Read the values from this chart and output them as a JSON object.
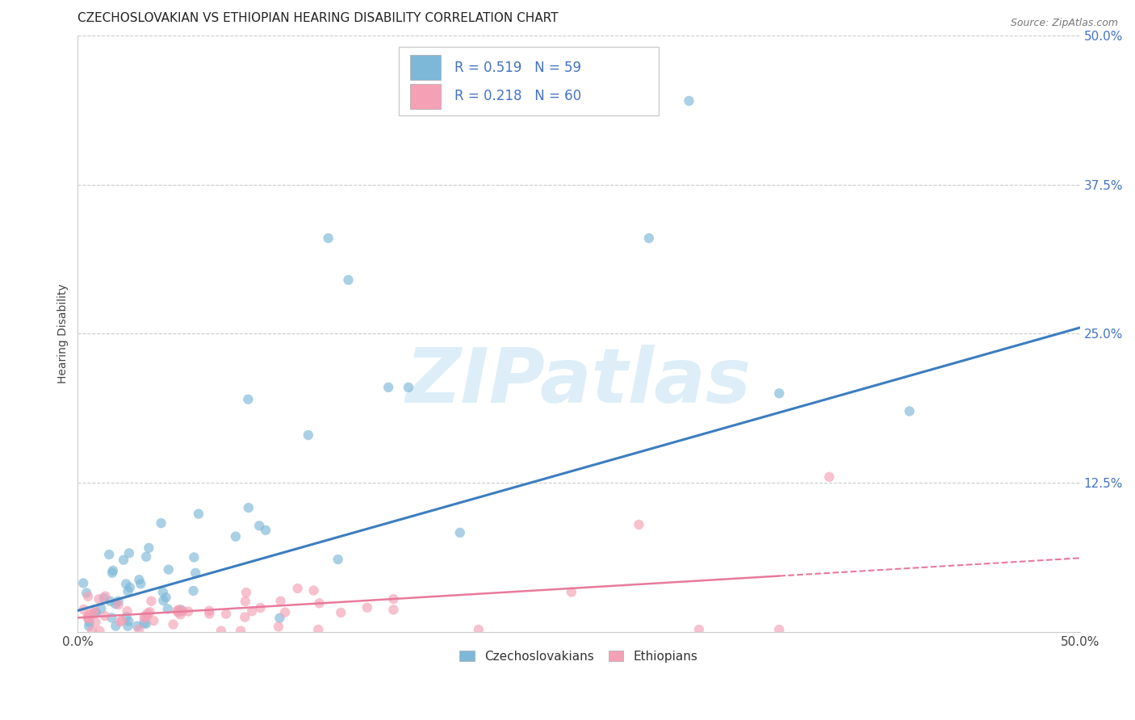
{
  "title": "CZECHOSLOVAKIAN VS ETHIOPIAN HEARING DISABILITY CORRELATION CHART",
  "source_text": "Source: ZipAtlas.com",
  "ylabel": "Hearing Disability",
  "xlim": [
    0.0,
    0.5
  ],
  "ylim": [
    0.0,
    0.5
  ],
  "xtick_positions": [
    0.0,
    0.5
  ],
  "xtick_labels": [
    "0.0%",
    "50.0%"
  ],
  "ytick_values": [
    0.125,
    0.25,
    0.375,
    0.5
  ],
  "ytick_labels": [
    "12.5%",
    "25.0%",
    "37.5%",
    "50.0%"
  ],
  "legend_labels": [
    "Czechoslovakians",
    "Ethiopians"
  ],
  "legend_R": [
    0.519,
    0.218
  ],
  "legend_N": [
    59,
    60
  ],
  "blue_scatter_color": "#7db8d8",
  "pink_scatter_color": "#f4a0b5",
  "blue_line_color": "#3d7dbf",
  "pink_line_color": "#e87a9a",
  "tick_color": "#4472c4",
  "watermark": "ZIPatlas",
  "watermark_color": "#ddeef8",
  "title_fontsize": 11,
  "axis_label_fontsize": 10,
  "tick_fontsize": 11,
  "background_color": "#ffffff",
  "grid_color": "#cccccc",
  "czech_trend_x0": 0.0,
  "czech_trend_y0": 0.018,
  "czech_trend_x1": 0.5,
  "czech_trend_y1": 0.255,
  "eth_trend_x0": 0.0,
  "eth_trend_y0": 0.012,
  "eth_trend_x1": 0.5,
  "eth_trend_y1": 0.062
}
